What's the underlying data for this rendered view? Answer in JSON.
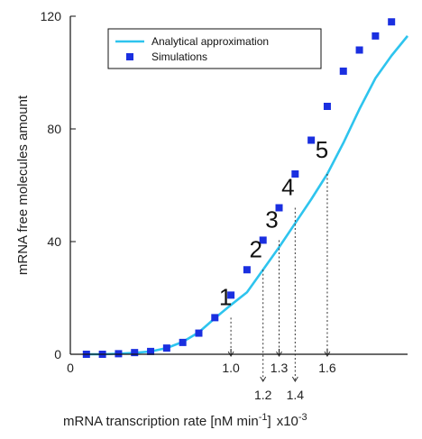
{
  "chart_data": {
    "type": "line",
    "ylabel": "mRNA free molecules amount",
    "xlabel": "mRNA transcription rate [nM min",
    "xlabel_sup": "-1",
    "xlabel_suffix": "]",
    "x_multiplier": "x10",
    "x_multiplier_sup": "-3",
    "xlim": [
      0,
      2.1
    ],
    "ylim": [
      0,
      120
    ],
    "x_ticks": [
      {
        "value": 0,
        "label": "0"
      },
      {
        "value": 1.0,
        "label": "1.0"
      },
      {
        "value": 1.3,
        "label": "1.3"
      },
      {
        "value": 1.6,
        "label": "1.6"
      }
    ],
    "x_ticks_below": [
      {
        "value": 1.2,
        "label": "1.2"
      },
      {
        "value": 1.4,
        "label": "1.4"
      }
    ],
    "y_ticks": [
      {
        "value": 0,
        "label": "0"
      },
      {
        "value": 40,
        "label": "40"
      },
      {
        "value": 80,
        "label": "80"
      },
      {
        "value": 120,
        "label": "120"
      }
    ],
    "series": [
      {
        "name": "Analytical approximation",
        "style": "line",
        "color": "#2ec4ee",
        "x": [
          0.1,
          0.2,
          0.3,
          0.4,
          0.5,
          0.6,
          0.7,
          0.8,
          0.9,
          1.0,
          1.1,
          1.2,
          1.3,
          1.4,
          1.5,
          1.6,
          1.7,
          1.8,
          1.9,
          2.0,
          2.1
        ],
        "y": [
          0,
          0,
          0.2,
          0.5,
          1.0,
          2.2,
          4.4,
          7.8,
          12.8,
          17.5,
          22.0,
          30.0,
          38.0,
          46.5,
          55.0,
          64.0,
          75.0,
          87.0,
          98.0,
          106.0,
          113.0
        ]
      },
      {
        "name": "Simulations",
        "style": "marker",
        "color": "#1a2fe0",
        "x": [
          0.1,
          0.2,
          0.3,
          0.4,
          0.5,
          0.6,
          0.7,
          0.8,
          0.9,
          1.0,
          1.1,
          1.2,
          1.3,
          1.4,
          1.5,
          1.6,
          1.7,
          1.8,
          1.9,
          2.0
        ],
        "y": [
          0,
          0,
          0.2,
          0.6,
          1.0,
          2.2,
          4.2,
          7.5,
          13.0,
          21.0,
          30.0,
          40.5,
          52.0,
          64.0,
          76.0,
          88.0,
          100.5,
          108.0,
          113.0,
          118.0
        ]
      }
    ],
    "annotations": [
      {
        "label": "1",
        "x": 1.0,
        "y": 13.0,
        "drop_x": 1.0
      },
      {
        "label": "2",
        "x": 1.2,
        "y": 30.0,
        "drop_x": 1.2
      },
      {
        "label": "3",
        "x": 1.3,
        "y": 40.5,
        "drop_x": 1.3
      },
      {
        "label": "4",
        "x": 1.4,
        "y": 52.0,
        "drop_x": 1.4
      },
      {
        "label": "5",
        "x": 1.6,
        "y": 64.0,
        "drop_x": 1.6
      }
    ],
    "legend": {
      "position": "top-left",
      "items": [
        "Analytical approximation",
        "Simulations"
      ]
    }
  }
}
